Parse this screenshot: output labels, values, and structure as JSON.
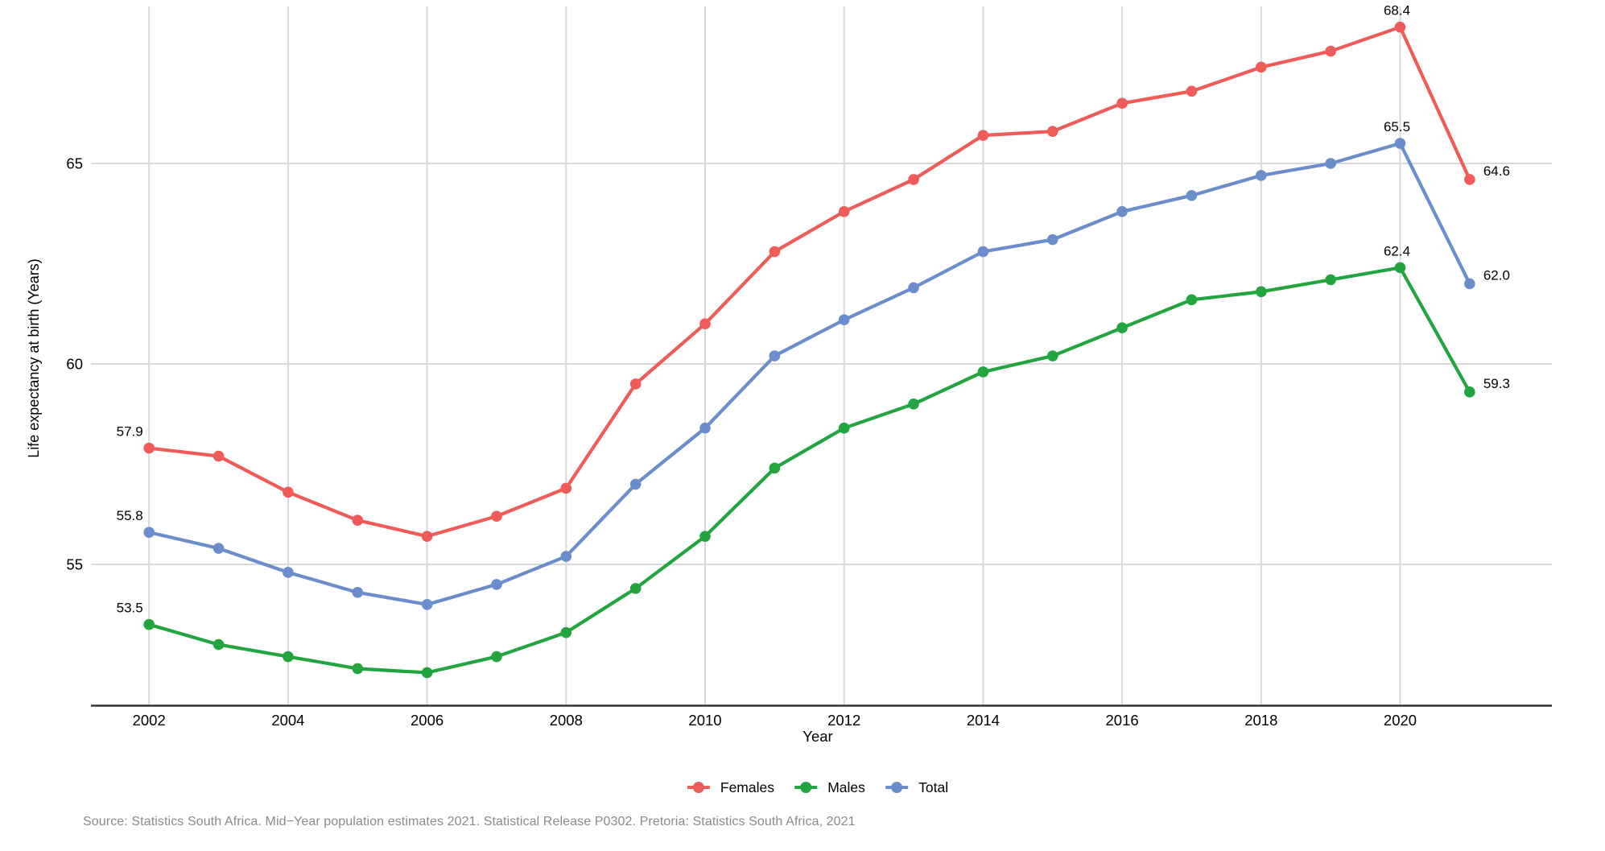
{
  "chart_data": {
    "type": "line",
    "title": "",
    "xlabel": "Year",
    "ylabel": "Life expectancy at birth (Years)",
    "x": [
      2002,
      2003,
      2004,
      2005,
      2006,
      2007,
      2008,
      2009,
      2010,
      2011,
      2012,
      2013,
      2014,
      2015,
      2016,
      2017,
      2018,
      2019,
      2020,
      2021
    ],
    "x_ticks": [
      2002,
      2004,
      2006,
      2008,
      2010,
      2012,
      2014,
      2016,
      2018,
      2020
    ],
    "y_ticks": [
      55,
      60,
      65
    ],
    "ylim": [
      51.5,
      68.9
    ],
    "grid": true,
    "legend_position": "bottom",
    "labeled_years": [
      2002,
      2020,
      2021
    ],
    "series": [
      {
        "name": "Females",
        "color": "#EF5B56",
        "values": [
          57.9,
          57.7,
          56.8,
          56.1,
          55.7,
          56.2,
          56.9,
          59.5,
          61.0,
          62.8,
          63.8,
          64.6,
          65.7,
          65.8,
          66.5,
          66.8,
          67.4,
          67.8,
          68.4,
          64.6
        ]
      },
      {
        "name": "Males",
        "color": "#22A43F",
        "values": [
          53.5,
          53.0,
          52.7,
          52.4,
          52.3,
          52.7,
          53.3,
          54.4,
          55.7,
          57.4,
          58.4,
          59.0,
          59.8,
          60.2,
          60.9,
          61.6,
          61.8,
          62.1,
          62.4,
          59.3
        ]
      },
      {
        "name": "Total",
        "color": "#6A8DCC",
        "values": [
          55.8,
          55.4,
          54.8,
          54.3,
          54.0,
          54.5,
          55.2,
          57.0,
          58.4,
          60.2,
          61.1,
          61.9,
          62.8,
          63.1,
          63.8,
          64.2,
          64.7,
          65.0,
          65.5,
          62.0
        ]
      }
    ]
  },
  "legend": {
    "items": [
      {
        "label": "Females",
        "color": "#EF5B56"
      },
      {
        "label": "Males",
        "color": "#22A43F"
      },
      {
        "label": "Total",
        "color": "#6A8DCC"
      }
    ]
  },
  "colors": {
    "gridline": "#D9D9D9",
    "axis_line": "#333333",
    "tick_text": "#000000",
    "data_label": "#000000",
    "source_text": "#8a8a8a"
  },
  "source_note": "Source: Statistics South Africa. Mid−Year population estimates 2021. Statistical Release P0302. Pretoria: Statistics South Africa, 2021"
}
